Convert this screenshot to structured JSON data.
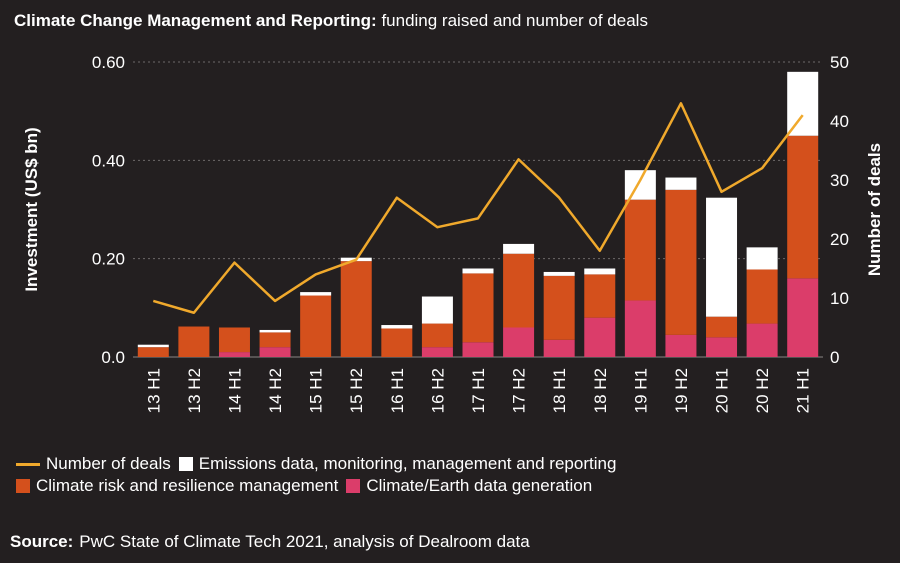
{
  "title": {
    "bold": "Climate Change Management and Reporting:",
    "rest": "funding raised and number of deals"
  },
  "source": {
    "label": "Source:",
    "text": "PwC State of Climate Tech 2021, analysis of Dealroom data"
  },
  "chart_data": {
    "type": "bar",
    "stacked": true,
    "categories": [
      "13 H1",
      "13 H2",
      "14 H1",
      "14 H2",
      "15 H1",
      "15 H2",
      "16 H1",
      "16 H2",
      "17 H1",
      "17 H2",
      "18 H1",
      "18 H2",
      "19 H1",
      "19 H2",
      "20 H1",
      "20 H2",
      "21 H1"
    ],
    "series": [
      {
        "name": "Climate/Earth data generation",
        "color": "#db3d6a",
        "values": [
          0.0,
          0.0,
          0.01,
          0.02,
          0.0,
          0.0,
          0.0,
          0.02,
          0.03,
          0.06,
          0.035,
          0.08,
          0.115,
          0.045,
          0.04,
          0.068,
          0.16
        ]
      },
      {
        "name": "Climate risk and resilience management",
        "color": "#d4501c",
        "values": [
          0.02,
          0.062,
          0.05,
          0.03,
          0.125,
          0.195,
          0.058,
          0.048,
          0.14,
          0.15,
          0.13,
          0.088,
          0.205,
          0.295,
          0.042,
          0.11,
          0.29
        ]
      },
      {
        "name": "Emissions data, monitoring, management and reporting",
        "color": "#ffffff",
        "values": [
          0.005,
          0.0,
          0.0,
          0.005,
          0.007,
          0.007,
          0.007,
          0.055,
          0.01,
          0.02,
          0.008,
          0.012,
          0.06,
          0.025,
          0.242,
          0.045,
          0.13
        ]
      }
    ],
    "line": {
      "name": "Number of deals",
      "color": "#f0a92c",
      "values": [
        9.5,
        7.5,
        16,
        9.5,
        14,
        16.5,
        27,
        22,
        23.5,
        33.5,
        27,
        18,
        30,
        43,
        28,
        32,
        41
      ]
    },
    "ylabel": "Investment (US$ bn)",
    "y2label": "Number of deals",
    "ylim": [
      0,
      0.6
    ],
    "y2lim": [
      0,
      50
    ],
    "yticks": [
      "0.0",
      "0.20",
      "0.40",
      "0.60"
    ],
    "y2ticks": [
      "0",
      "10",
      "20",
      "30",
      "40",
      "50"
    ],
    "grid": true,
    "legend_position": "bottom"
  },
  "legend": {
    "row1": [
      {
        "key": "line",
        "label": "Number of deals",
        "color": "#f0a92c"
      },
      {
        "key": "box",
        "label": "Emissions data, monitoring, management and reporting",
        "color": "#ffffff"
      }
    ],
    "row2": [
      {
        "key": "box",
        "label": "Climate risk and resilience management",
        "color": "#d4501c"
      },
      {
        "key": "box",
        "label": "Climate/Earth data generation",
        "color": "#db3d6a"
      }
    ]
  }
}
